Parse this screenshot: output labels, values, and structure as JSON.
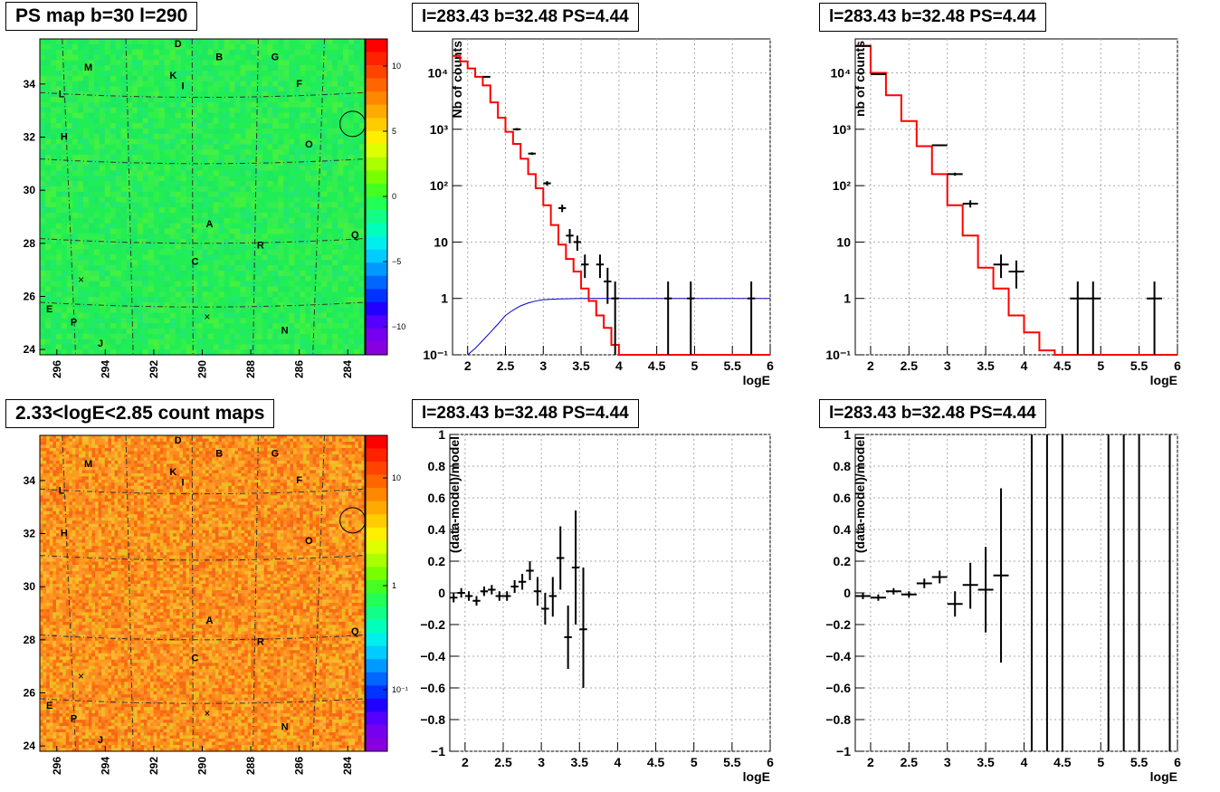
{
  "titles": {
    "map_top": "PS map b=30 l=290",
    "map_bottom": "2.33<logE<2.85 count maps",
    "tr1": "l=283.43 b=32.48 PS=4.44",
    "tr2": "l=283.43 b=32.48 PS=4.44",
    "br1": "l=283.43 b=32.48 PS=4.44",
    "br2": "l=283.43 b=32.48 PS=4.44"
  },
  "map_common": {
    "x_ticks": [
      "296",
      "294",
      "292",
      "290",
      "288",
      "286",
      "284"
    ],
    "y_ticks": [
      "24",
      "26",
      "28",
      "30",
      "32",
      "34"
    ],
    "source_labels": [
      "D",
      "B",
      "G",
      "M",
      "K",
      "I",
      "F",
      "L",
      "H",
      "O",
      "A",
      "Q",
      "R",
      "C",
      "E",
      "P",
      "N",
      "J"
    ]
  },
  "colors": {
    "map_top_bg": "#21ee55",
    "map_bottom_bg": "#f88a22",
    "model_line": "#ff0000",
    "psf_line": "#0000cc",
    "data": "#000000",
    "grid": "#aaaaaa"
  },
  "chart_data": [
    {
      "type": "heatmap",
      "title": "PS map b=30 l=290",
      "xlim": [
        296.7,
        283.3
      ],
      "ylim": [
        23.8,
        35.7
      ],
      "x_ticks": [
        296,
        294,
        292,
        290,
        288,
        286,
        284
      ],
      "y_ticks": [
        24,
        26,
        28,
        30,
        32,
        34
      ],
      "colorbar": {
        "ticks": [
          10,
          5,
          0,
          -5,
          -10
        ],
        "range": [
          -12,
          12
        ]
      }
    },
    {
      "type": "step",
      "title": "l=283.43 b=32.48 PS=4.44",
      "xlabel": "logE",
      "ylabel": "Nb of counts",
      "log_y": true,
      "xlim": [
        1.8,
        6.0
      ],
      "ylim": [
        0.1,
        40000
      ],
      "x_ticks": [
        "2",
        "2.5",
        "3",
        "3.5",
        "4",
        "4.5",
        "5",
        "5.5",
        "6"
      ],
      "y_ticks": [
        "10⁻¹",
        "1",
        "10",
        "10²",
        "10³",
        "10⁴"
      ],
      "model_step_edges": [
        1.8,
        1.9,
        2.0,
        2.1,
        2.2,
        2.3,
        2.4,
        2.5,
        2.6,
        2.7,
        2.8,
        2.9,
        3.0,
        3.1,
        3.2,
        3.3,
        3.4,
        3.5,
        3.6,
        3.7,
        3.8,
        3.9,
        4.0,
        4.1,
        4.2,
        6.0
      ],
      "model_step_values": [
        20000,
        16000,
        12000,
        8500,
        6000,
        3000,
        1600,
        900,
        550,
        300,
        160,
        90,
        45,
        20,
        9,
        5,
        3,
        1.5,
        0.9,
        0.5,
        0.3,
        0.15,
        0.1,
        0.1,
        0.1
      ],
      "psf_x": [
        2.0,
        2.1,
        2.2,
        2.3,
        2.4,
        2.5,
        2.6,
        2.7,
        2.8,
        2.9,
        3.0,
        3.2,
        3.5,
        4.0,
        5.0,
        6.0
      ],
      "psf_y": [
        0.1,
        0.13,
        0.18,
        0.25,
        0.35,
        0.5,
        0.62,
        0.74,
        0.83,
        0.9,
        0.95,
        0.98,
        1.0,
        1.0,
        1.0,
        1.0
      ],
      "data_points": [
        {
          "x": 2.25,
          "y": 8500,
          "xerr": 0.05,
          "lo": 8300,
          "hi": 8700
        },
        {
          "x": 2.65,
          "y": 1000,
          "xerr": 0.05,
          "lo": 950,
          "hi": 1050
        },
        {
          "x": 2.85,
          "y": 370,
          "xerr": 0.05,
          "lo": 350,
          "hi": 390
        },
        {
          "x": 3.05,
          "y": 110,
          "xerr": 0.05,
          "lo": 100,
          "hi": 120
        },
        {
          "x": 3.25,
          "y": 40,
          "xerr": 0.05,
          "lo": 34,
          "hi": 46
        },
        {
          "x": 3.35,
          "y": 13,
          "xerr": 0.05,
          "lo": 9.5,
          "hi": 17
        },
        {
          "x": 3.45,
          "y": 10,
          "xerr": 0.05,
          "lo": 7,
          "hi": 13
        },
        {
          "x": 3.55,
          "y": 4,
          "xerr": 0.05,
          "lo": 2.3,
          "hi": 6
        },
        {
          "x": 3.75,
          "y": 4,
          "xerr": 0.05,
          "lo": 2.3,
          "hi": 6
        },
        {
          "x": 3.85,
          "y": 2,
          "xerr": 0.05,
          "lo": 0.8,
          "hi": 3.5
        },
        {
          "x": 3.95,
          "y": 1,
          "xerr": 0.05,
          "lo": 0.1,
          "hi": 2
        },
        {
          "x": 4.65,
          "y": 1,
          "xerr": 0.05,
          "lo": 0.1,
          "hi": 2
        },
        {
          "x": 4.95,
          "y": 1,
          "xerr": 0.05,
          "lo": 0.1,
          "hi": 2
        },
        {
          "x": 5.75,
          "y": 1,
          "xerr": 0.05,
          "lo": 0.1,
          "hi": 2
        }
      ]
    },
    {
      "type": "step",
      "title": "l=283.43 b=32.48 PS=4.44",
      "xlabel": "logE",
      "ylabel": "nb of counts",
      "log_y": true,
      "xlim": [
        1.8,
        6.0
      ],
      "ylim": [
        0.1,
        40000
      ],
      "x_ticks": [
        "2",
        "2.5",
        "3",
        "3.5",
        "4",
        "4.5",
        "5",
        "5.5",
        "6"
      ],
      "y_ticks": [
        "10⁻¹",
        "1",
        "10",
        "10²",
        "10³",
        "10⁴"
      ],
      "model_step_edges": [
        1.8,
        2.0,
        2.2,
        2.4,
        2.6,
        2.8,
        3.0,
        3.2,
        3.4,
        3.6,
        3.8,
        4.0,
        4.2,
        4.4,
        6.0
      ],
      "model_step_values": [
        30000,
        10000,
        4000,
        1400,
        500,
        160,
        45,
        13,
        3.5,
        1.5,
        0.5,
        0.25,
        0.12,
        0.1
      ],
      "data_points": [
        {
          "x": 1.9,
          "y": 30000,
          "xerr": 0.1,
          "lo": 29000,
          "hi": 31000
        },
        {
          "x": 2.1,
          "y": 9500,
          "xerr": 0.1,
          "lo": 9200,
          "hi": 9800
        },
        {
          "x": 2.9,
          "y": 520,
          "xerr": 0.1,
          "lo": 500,
          "hi": 540
        },
        {
          "x": 3.1,
          "y": 160,
          "xerr": 0.1,
          "lo": 150,
          "hi": 170
        },
        {
          "x": 3.3,
          "y": 48,
          "xerr": 0.1,
          "lo": 41,
          "hi": 55
        },
        {
          "x": 3.7,
          "y": 4,
          "xerr": 0.1,
          "lo": 2.3,
          "hi": 6
        },
        {
          "x": 3.9,
          "y": 3,
          "xerr": 0.1,
          "lo": 1.5,
          "hi": 4.7
        },
        {
          "x": 4.7,
          "y": 1,
          "xerr": 0.1,
          "lo": 0.1,
          "hi": 2
        },
        {
          "x": 4.9,
          "y": 1,
          "xerr": 0.1,
          "lo": 0.1,
          "hi": 2
        },
        {
          "x": 5.7,
          "y": 1,
          "xerr": 0.1,
          "lo": 0.1,
          "hi": 2
        }
      ]
    },
    {
      "type": "heatmap",
      "title": "2.33<logE<2.85 count maps",
      "xlim": [
        296.7,
        283.3
      ],
      "ylim": [
        23.8,
        35.7
      ],
      "x_ticks": [
        296,
        294,
        292,
        290,
        288,
        286,
        284
      ],
      "y_ticks": [
        24,
        26,
        28,
        30,
        32,
        34
      ],
      "colorbar": {
        "ticks": [
          "10",
          "1",
          "10⁻¹"
        ],
        "log_scale": true
      }
    },
    {
      "type": "scatter",
      "title": "l=283.43 b=32.48 PS=4.44",
      "xlabel": "logE",
      "ylabel": "(data-model)/model",
      "xlim": [
        1.8,
        6.0
      ],
      "ylim": [
        -1,
        1
      ],
      "x_ticks": [
        "2",
        "2.5",
        "3",
        "3.5",
        "4",
        "4.5",
        "5",
        "5.5",
        "6"
      ],
      "y_ticks": [
        "−1",
        "−0.8",
        "−0.6",
        "−0.4",
        "−0.2",
        "0",
        "0.2",
        "0.4",
        "0.6",
        "0.8",
        "1"
      ],
      "data_points": [
        {
          "x": 1.85,
          "y": -0.03,
          "xerr": 0.05,
          "lo": -0.06,
          "hi": 0.0
        },
        {
          "x": 1.95,
          "y": 0.0,
          "xerr": 0.05,
          "lo": -0.03,
          "hi": 0.03
        },
        {
          "x": 2.05,
          "y": -0.02,
          "xerr": 0.05,
          "lo": -0.05,
          "hi": 0.01
        },
        {
          "x": 2.15,
          "y": -0.05,
          "xerr": 0.05,
          "lo": -0.08,
          "hi": -0.02
        },
        {
          "x": 2.25,
          "y": 0.01,
          "xerr": 0.05,
          "lo": -0.02,
          "hi": 0.04
        },
        {
          "x": 2.35,
          "y": 0.02,
          "xerr": 0.05,
          "lo": -0.01,
          "hi": 0.05
        },
        {
          "x": 2.45,
          "y": -0.02,
          "xerr": 0.05,
          "lo": -0.05,
          "hi": 0.01
        },
        {
          "x": 2.55,
          "y": -0.02,
          "xerr": 0.05,
          "lo": -0.05,
          "hi": 0.01
        },
        {
          "x": 2.65,
          "y": 0.04,
          "xerr": 0.05,
          "lo": 0.0,
          "hi": 0.08
        },
        {
          "x": 2.75,
          "y": 0.07,
          "xerr": 0.05,
          "lo": 0.02,
          "hi": 0.12
        },
        {
          "x": 2.85,
          "y": 0.14,
          "xerr": 0.05,
          "lo": 0.08,
          "hi": 0.2
        },
        {
          "x": 2.95,
          "y": 0.01,
          "xerr": 0.05,
          "lo": -0.08,
          "hi": 0.1
        },
        {
          "x": 3.05,
          "y": -0.1,
          "xerr": 0.05,
          "lo": -0.2,
          "hi": 0.0
        },
        {
          "x": 3.15,
          "y": -0.02,
          "xerr": 0.05,
          "lo": -0.15,
          "hi": 0.1
        },
        {
          "x": 3.25,
          "y": 0.22,
          "xerr": 0.05,
          "lo": 0.02,
          "hi": 0.42
        },
        {
          "x": 3.35,
          "y": -0.28,
          "xerr": 0.05,
          "lo": -0.48,
          "hi": -0.08
        },
        {
          "x": 3.45,
          "y": 0.16,
          "xerr": 0.05,
          "lo": -0.2,
          "hi": 0.52
        },
        {
          "x": 3.55,
          "y": -0.23,
          "xerr": 0.05,
          "lo": -0.6,
          "hi": 0.16
        }
      ]
    },
    {
      "type": "scatter",
      "title": "l=283.43 b=32.48 PS=4.44",
      "xlabel": "logE",
      "ylabel": "(data-model)/model",
      "xlim": [
        1.8,
        6.0
      ],
      "ylim": [
        -1,
        1
      ],
      "x_ticks": [
        "2",
        "2.5",
        "3",
        "3.5",
        "4",
        "4.5",
        "5",
        "5.5",
        "6"
      ],
      "y_ticks": [
        "−1",
        "−0.8",
        "−0.6",
        "−0.4",
        "−0.2",
        "0",
        "0.2",
        "0.4",
        "0.6",
        "0.8",
        "1"
      ],
      "data_points": [
        {
          "x": 1.9,
          "y": -0.02,
          "xerr": 0.1,
          "lo": -0.04,
          "hi": 0.0
        },
        {
          "x": 2.1,
          "y": -0.03,
          "xerr": 0.1,
          "lo": -0.05,
          "hi": -0.01
        },
        {
          "x": 2.3,
          "y": 0.01,
          "xerr": 0.1,
          "lo": -0.01,
          "hi": 0.03
        },
        {
          "x": 2.5,
          "y": -0.01,
          "xerr": 0.1,
          "lo": -0.03,
          "hi": 0.01
        },
        {
          "x": 2.7,
          "y": 0.06,
          "xerr": 0.1,
          "lo": 0.03,
          "hi": 0.09
        },
        {
          "x": 2.9,
          "y": 0.1,
          "xerr": 0.1,
          "lo": 0.06,
          "hi": 0.14
        },
        {
          "x": 3.1,
          "y": -0.07,
          "xerr": 0.1,
          "lo": -0.15,
          "hi": 0.01
        },
        {
          "x": 3.3,
          "y": 0.05,
          "xerr": 0.1,
          "lo": -0.1,
          "hi": 0.19
        },
        {
          "x": 3.5,
          "y": 0.02,
          "xerr": 0.1,
          "lo": -0.25,
          "hi": 0.29
        },
        {
          "x": 3.7,
          "y": 0.11,
          "xerr": 0.1,
          "lo": -0.44,
          "hi": 0.66
        }
      ],
      "vertical_bars_x": [
        4.1,
        4.3,
        4.5,
        5.1,
        5.3,
        5.5,
        5.9
      ]
    }
  ]
}
